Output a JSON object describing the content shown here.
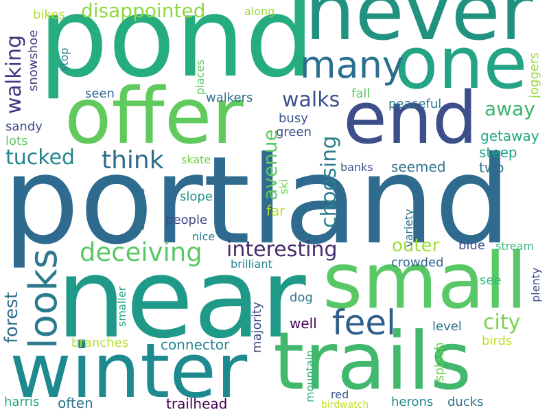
{
  "words": {
    "portland": "portland",
    "near": "near",
    "pond": "pond",
    "never": "never",
    "trails": "trails",
    "winter": "winter",
    "small": "small",
    "offer": "offer",
    "one": "one",
    "end": "end",
    "many": "many",
    "looks": "looks",
    "feel": "feel",
    "deceiving": "deceiving",
    "interesting": "interesting",
    "think": "think",
    "city": "city",
    "walking": "walking",
    "avenue": "avenue",
    "choosing": "choosing",
    "tucked": "tucked",
    "away": "away",
    "walks": "walks",
    "forest": "forest",
    "disappointed": "disappointed",
    "outer": "outer",
    "along": "along",
    "bikes": "bikes",
    "snowshoe": "snowshoe",
    "stop": "stop",
    "seen": "seen",
    "places": "places",
    "walkers": "walkers",
    "fall": "fall",
    "joggers": "joggers",
    "peaceful": "peaceful",
    "busy": "busy",
    "green": "green",
    "getaway": "getaway",
    "sandy": "sandy",
    "lots": "lots",
    "steep": "steep",
    "skate": "skate",
    "banks": "banks",
    "seemed": "seemed",
    "two": "two",
    "berries": "berries",
    "slope": "slope",
    "ski": "ski",
    "far": "far",
    "people": "people",
    "variety": "variety",
    "nice": "nice",
    "blue": "blue",
    "stream": "stream",
    "brilliant": "brilliant",
    "crowded": "crowded",
    "majority": "majority",
    "smaller": "smaller",
    "see": "see",
    "plenty": "plenty",
    "dog": "dog",
    "well": "well",
    "level": "level",
    "branches": "branches",
    "connector": "connector",
    "mountain": "mountain",
    "splash": "splash",
    "birds": "birds",
    "harris": "harris",
    "often": "often",
    "trailhead": "trailhead",
    "red": "red",
    "herons": "herons",
    "ducks": "ducks",
    "birdwatch": "birdwatch"
  }
}
